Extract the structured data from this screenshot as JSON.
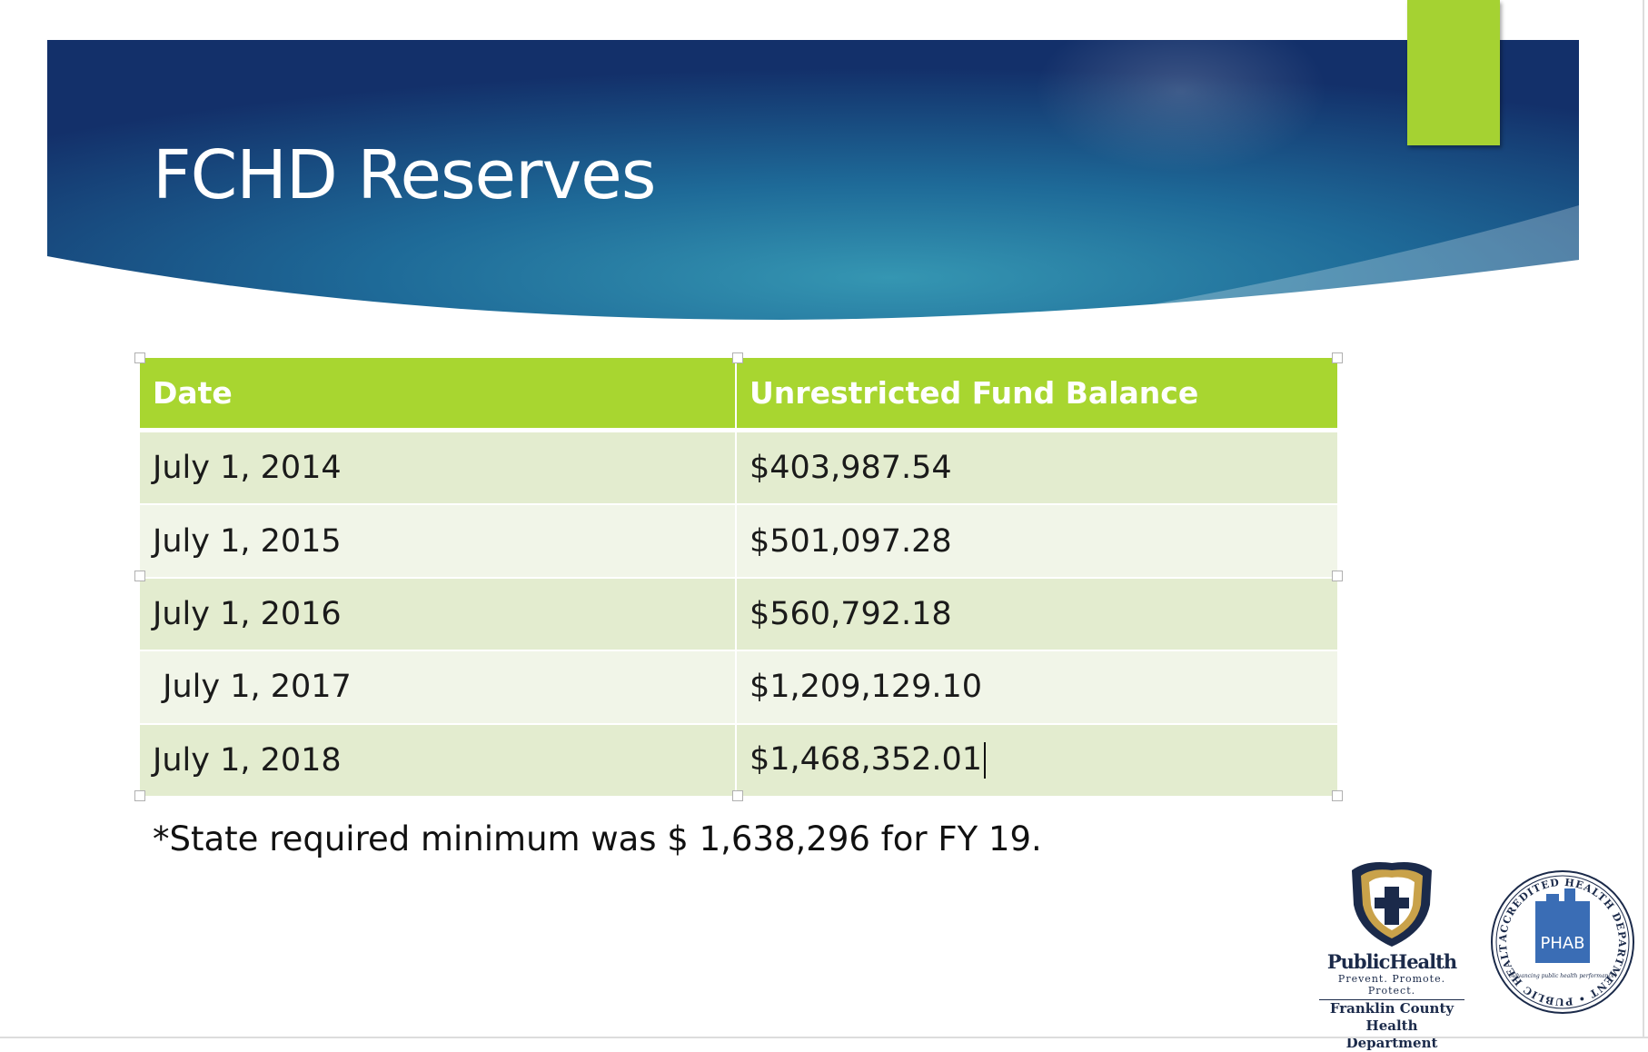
{
  "slide": {
    "title": "FCHD Reserves",
    "colors": {
      "banner_dark": "#14326b",
      "banner_teal": "#2e8ca8",
      "accent": "#a5d232",
      "header_green": "#a8d630",
      "row_odd": "#e3eccf",
      "row_even": "#f1f5e8"
    }
  },
  "table": {
    "headers": [
      "Date",
      "Unrestricted Fund Balance"
    ],
    "rows": [
      {
        "date": "July 1, 2014",
        "balance": "$403,987.54"
      },
      {
        "date": "July 1, 2015",
        "balance": "$501,097.28"
      },
      {
        "date": "July 1, 2016",
        "balance": "$560,792.18"
      },
      {
        "date": " July 1, 2017",
        "balance": "$1,209,129.10"
      },
      {
        "date": "July 1, 2018",
        "balance": "$1,468,352.01"
      }
    ]
  },
  "footnote": "*State required minimum was $ 1,638,296 for FY 19.",
  "logos": {
    "public_health": {
      "icon": "shield-cross-icon",
      "name": "PublicHealth",
      "tagline": "Prevent. Promote. Protect.",
      "org_line1": "Franklin County",
      "org_line2": "Health Department"
    },
    "phab_seal": {
      "icon": "phab-seal-icon",
      "center": "PHAB",
      "ring_text": "ACCREDITED HEALTH DEPARTMENT • PUBLIC HEALTH ACCREDITATION BOARD •",
      "motto": "Advancing public health performance"
    }
  }
}
